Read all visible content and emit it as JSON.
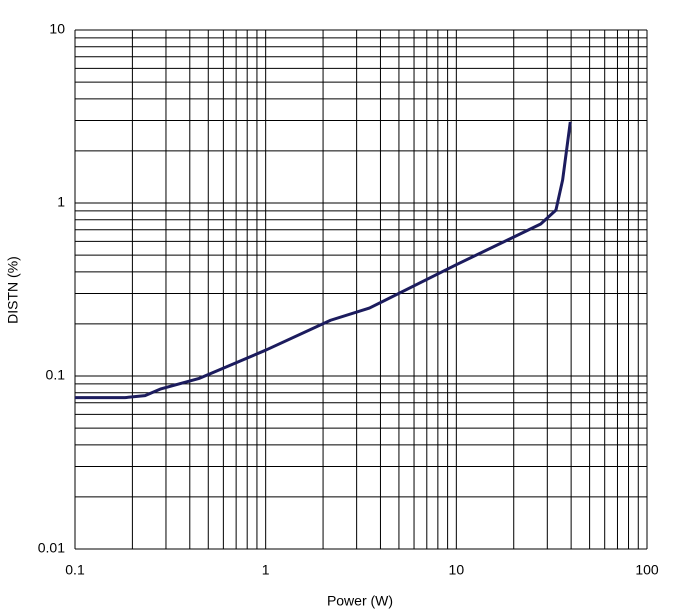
{
  "chart_data": {
    "type": "line",
    "xlabel": "Power (W)",
    "ylabel": "DISTN (%)",
    "x": [
      0.1,
      0.183,
      0.233,
      0.28,
      0.45,
      1,
      2.19,
      3.5,
      10,
      27.7,
      33.3,
      36.1,
      39.6
    ],
    "series": [
      {
        "name": "DISTN",
        "color": "#1c1c5e",
        "values": [
          0.075,
          0.075,
          0.077,
          0.084,
          0.097,
          0.141,
          0.21,
          0.247,
          0.44,
          0.756,
          0.91,
          1.36,
          2.94
        ]
      }
    ],
    "xlim": [
      0.1,
      100
    ],
    "ylim": [
      0.01,
      10
    ],
    "xticks": [
      0.1,
      1,
      10,
      100
    ],
    "yticks": [
      0.01,
      0.1,
      1,
      10
    ],
    "xscale": "log",
    "yscale": "log",
    "grid": true
  }
}
